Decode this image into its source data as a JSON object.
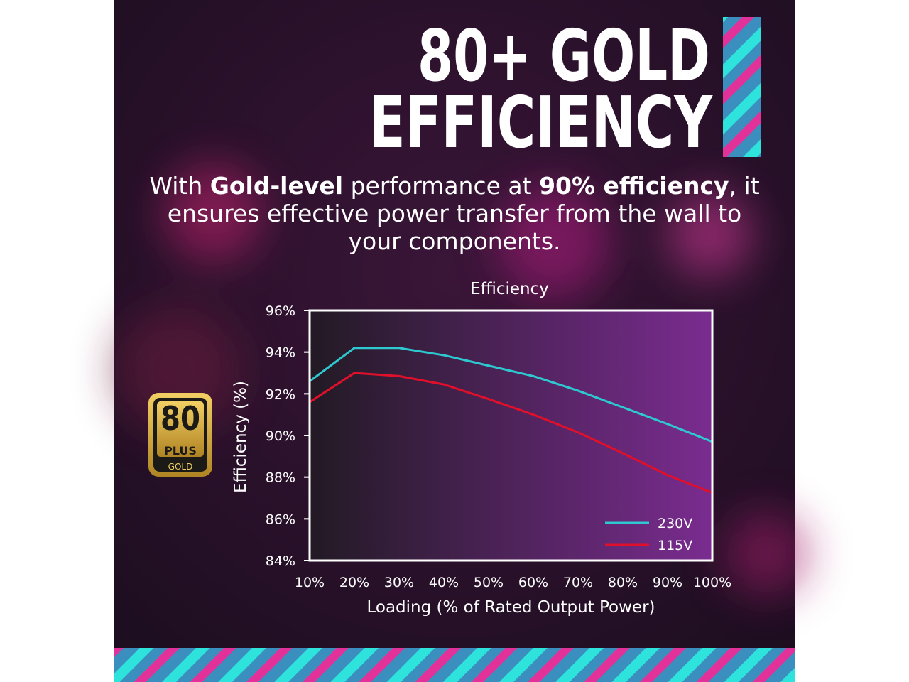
{
  "header": {
    "title_lines": [
      "80+ GOLD",
      "EFFICIENCY"
    ],
    "paragraph": [
      [
        {
          "text": "With "
        },
        {
          "text": "Gold-level",
          "bold": true
        },
        {
          "text": " performance at "
        },
        {
          "text": "90% efficiency",
          "bold": true
        },
        {
          "text": ", it"
        }
      ],
      [
        {
          "text": "ensures effective power transfer from the wall to"
        }
      ],
      [
        {
          "text": "your components."
        }
      ]
    ]
  },
  "badge": {
    "number": "80",
    "plus": "PLUS",
    "level": "GOLD"
  },
  "chart_data": {
    "type": "line",
    "title": "Efficiency",
    "y_label": "Efficiency (%)",
    "x_label": "Loading (% of Rated Output Power)",
    "categories": [
      "10%",
      "20%",
      "30%",
      "40%",
      "50%",
      "60%",
      "70%",
      "80%",
      "90%",
      "100%"
    ],
    "series": [
      {
        "name": "230V",
        "color": "#2ec9d0",
        "values": [
          92.6,
          94.2,
          94.2,
          93.85,
          93.35,
          92.85,
          92.15,
          91.35,
          90.55,
          89.7
        ]
      },
      {
        "name": "115V",
        "color": "#e0102a",
        "values": [
          91.6,
          93.0,
          92.85,
          92.45,
          91.75,
          91.0,
          90.15,
          89.15,
          88.1,
          87.25
        ]
      }
    ],
    "ylim": [
      84,
      96
    ],
    "yticks": [
      {
        "value": 84,
        "label": "84%"
      },
      {
        "value": 86,
        "label": "86%"
      },
      {
        "value": 88,
        "label": "88%"
      },
      {
        "value": 90,
        "label": "90%"
      },
      {
        "value": 92,
        "label": "92%"
      },
      {
        "value": 94,
        "label": "94%"
      },
      {
        "value": 96,
        "label": "96%"
      }
    ],
    "legend": "bottom-right"
  }
}
